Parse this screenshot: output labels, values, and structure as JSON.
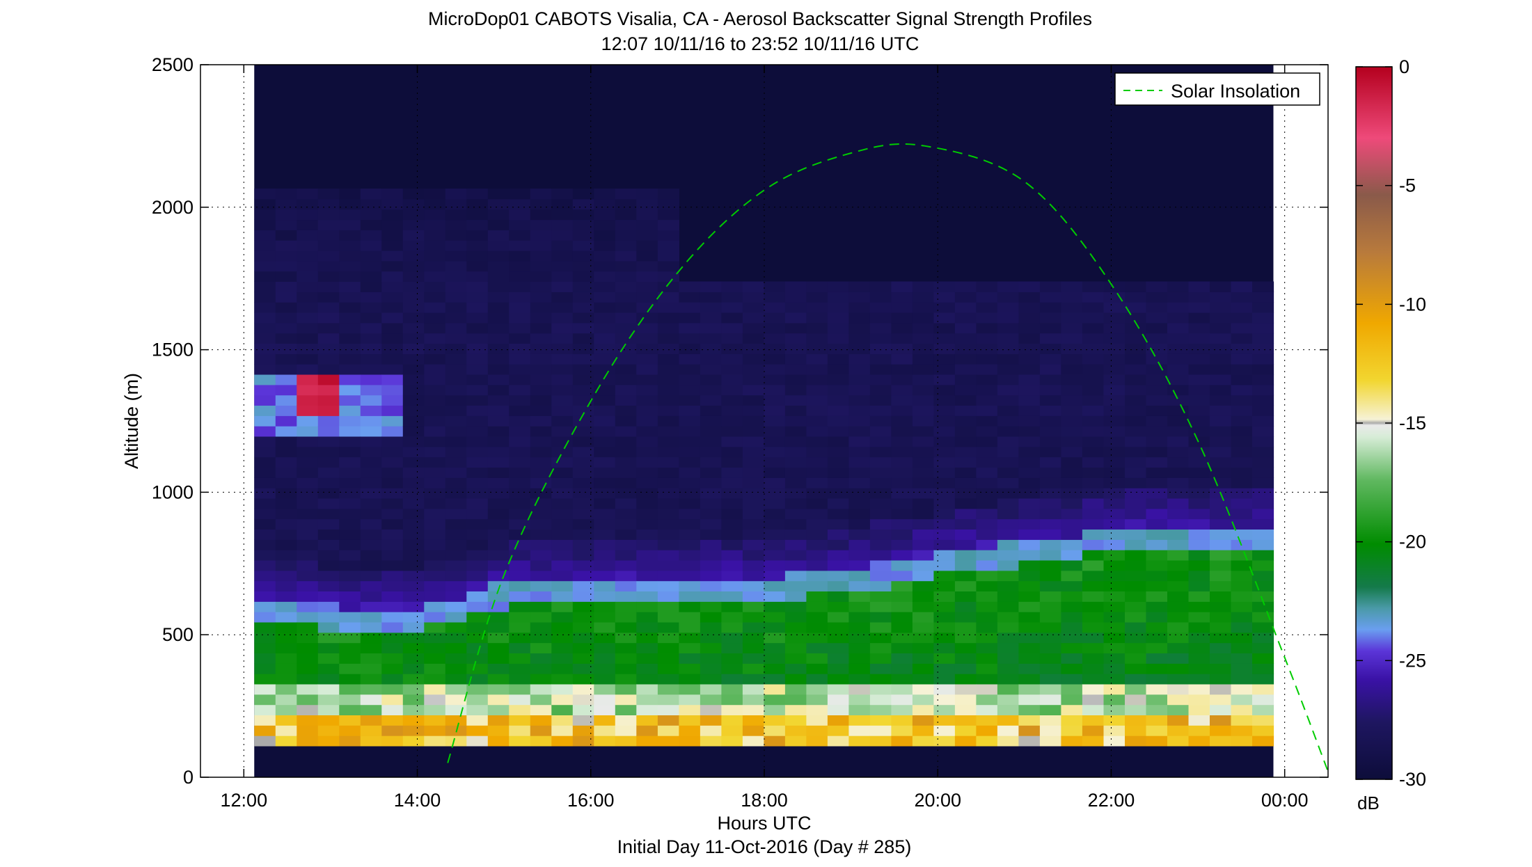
{
  "chart_data": {
    "type": "heatmap",
    "title": "MicroDop01 CABOTS Visalia, CA - Aerosol Backscatter Signal Strength Profiles",
    "subtitle": "12:07 10/11/16 to 23:52 10/11/16  UTC",
    "xlabel": "Hours UTC",
    "footer": "Initial Day 11-Oct-2016 (Day # 285)",
    "ylabel": "Altitude (m)",
    "xlim": [
      11.5,
      24.5
    ],
    "ylim": [
      0,
      2500
    ],
    "xticks": [
      12,
      14,
      16,
      18,
      20,
      22,
      24
    ],
    "xtick_labels": [
      "12:00",
      "14:00",
      "16:00",
      "18:00",
      "20:00",
      "22:00",
      "00:00"
    ],
    "yticks": [
      0,
      500,
      1000,
      1500,
      2000,
      2500
    ],
    "ytick_labels": [
      "0",
      "500",
      "1000",
      "1500",
      "2000",
      "2500"
    ],
    "grid": "dotted",
    "data_time_range": [
      12.12,
      23.87
    ],
    "altitude_range": [
      110,
      2500
    ],
    "colorbar": {
      "label": "dB",
      "range": [
        -30,
        0
      ],
      "ticks": [
        0,
        -5,
        -10,
        -15,
        -20,
        -25,
        -30
      ],
      "tick_labels": [
        "0",
        "-5",
        "-10",
        "-15",
        "-20",
        "-25",
        "-30"
      ]
    },
    "legend": {
      "position": "top-right",
      "entries": [
        "Solar Insolation"
      ]
    },
    "solar_insolation_color": "#00cc00",
    "series": [
      {
        "name": "Solar Insolation",
        "style": "dashed",
        "x": [
          14.35,
          15,
          16,
          17,
          18,
          19,
          19.85,
          21,
          22,
          23,
          24,
          24.5
        ],
        "y": [
          50,
          710,
          1320,
          1770,
          2060,
          2190,
          2215,
          2090,
          1730,
          1180,
          420,
          20
        ]
      }
    ],
    "layers": {
      "boundary_layer_top_m": [
        [
          12.1,
          630
        ],
        [
          13,
          600
        ],
        [
          14,
          590
        ],
        [
          15,
          680
        ],
        [
          16,
          700
        ],
        [
          17,
          690
        ],
        [
          18,
          700
        ],
        [
          19,
          730
        ],
        [
          20,
          790
        ],
        [
          21,
          830
        ],
        [
          22,
          870
        ],
        [
          23,
          880
        ],
        [
          23.9,
          870
        ]
      ],
      "elevated_layer": {
        "time": [
          12.1,
          13.9
        ],
        "altitude_m": [
          1200,
          1420
        ],
        "peak_db": -1
      }
    }
  }
}
